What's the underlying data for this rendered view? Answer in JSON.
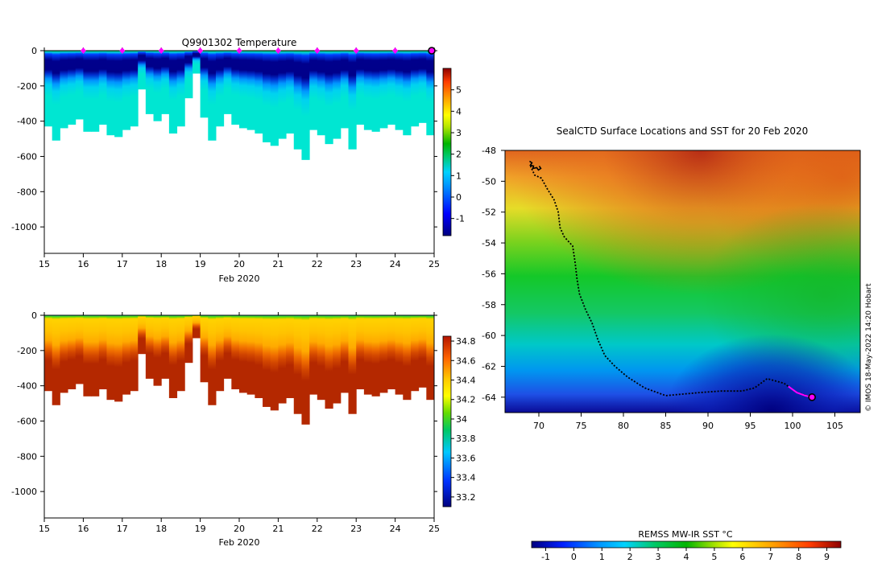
{
  "chart_data": [
    {
      "type": "heatmap",
      "title": "Q9901302  Temperature",
      "variable": "temperature",
      "xlabel": "Feb 2020",
      "x_ticks": [
        "15",
        "16",
        "17",
        "18",
        "19",
        "20",
        "21",
        "22",
        "23",
        "24",
        "25"
      ],
      "xlim": [
        15,
        25
      ],
      "y_ticks": [
        "0",
        "-200",
        "-400",
        "-600",
        "-800",
        "-1000"
      ],
      "ylim": [
        -1150,
        0
      ],
      "colorbar_ticks": [
        "5",
        "4",
        "3",
        "2",
        "1",
        "0",
        "-1"
      ],
      "colorbar_range": [
        -1.8,
        6
      ],
      "surface_markers_day": [
        16,
        17,
        18,
        19,
        20,
        21,
        22,
        23,
        24
      ],
      "end_marker_day": 25,
      "profile_max_depth": [
        [
          15.0,
          430
        ],
        [
          15.2,
          510
        ],
        [
          15.4,
          440
        ],
        [
          15.6,
          420
        ],
        [
          15.8,
          390
        ],
        [
          16.0,
          460
        ],
        [
          16.2,
          460
        ],
        [
          16.4,
          420
        ],
        [
          16.6,
          480
        ],
        [
          16.8,
          490
        ],
        [
          17.0,
          450
        ],
        [
          17.2,
          430
        ],
        [
          17.4,
          220
        ],
        [
          17.6,
          360
        ],
        [
          17.8,
          400
        ],
        [
          18.0,
          360
        ],
        [
          18.2,
          470
        ],
        [
          18.4,
          430
        ],
        [
          18.6,
          270
        ],
        [
          18.8,
          130
        ],
        [
          19.0,
          380
        ],
        [
          19.2,
          510
        ],
        [
          19.4,
          430
        ],
        [
          19.6,
          360
        ],
        [
          19.8,
          420
        ],
        [
          20.0,
          440
        ],
        [
          20.2,
          450
        ],
        [
          20.4,
          470
        ],
        [
          20.6,
          520
        ],
        [
          20.8,
          540
        ],
        [
          21.0,
          500
        ],
        [
          21.2,
          470
        ],
        [
          21.4,
          560
        ],
        [
          21.6,
          620
        ],
        [
          21.8,
          450
        ],
        [
          22.0,
          480
        ],
        [
          22.2,
          530
        ],
        [
          22.4,
          500
        ],
        [
          22.6,
          440
        ],
        [
          22.8,
          560
        ],
        [
          23.0,
          420
        ],
        [
          23.2,
          450
        ],
        [
          23.4,
          460
        ],
        [
          23.6,
          440
        ],
        [
          23.8,
          420
        ],
        [
          24.0,
          450
        ],
        [
          24.2,
          480
        ],
        [
          24.4,
          430
        ],
        [
          24.6,
          410
        ],
        [
          24.8,
          480
        ],
        [
          25.0,
          500
        ]
      ]
    },
    {
      "type": "heatmap",
      "title": "",
      "variable": "salinity",
      "xlabel": "Feb 2020",
      "x_ticks": [
        "15",
        "16",
        "17",
        "18",
        "19",
        "20",
        "21",
        "22",
        "23",
        "24",
        "25"
      ],
      "xlim": [
        15,
        25
      ],
      "y_ticks": [
        "0",
        "-200",
        "-400",
        "-600",
        "-800",
        "-1000"
      ],
      "ylim": [
        -1150,
        0
      ],
      "colorbar_ticks": [
        "34.8",
        "34.6",
        "34.4",
        "34.2",
        "34",
        "33.8",
        "33.6",
        "33.4",
        "33.2"
      ],
      "colorbar_range": [
        33.1,
        34.85
      ],
      "profile_max_depth": [
        [
          15.0,
          430
        ],
        [
          15.2,
          510
        ],
        [
          15.4,
          440
        ],
        [
          15.6,
          420
        ],
        [
          15.8,
          390
        ],
        [
          16.0,
          460
        ],
        [
          16.2,
          460
        ],
        [
          16.4,
          420
        ],
        [
          16.6,
          480
        ],
        [
          16.8,
          490
        ],
        [
          17.0,
          450
        ],
        [
          17.2,
          430
        ],
        [
          17.4,
          220
        ],
        [
          17.6,
          360
        ],
        [
          17.8,
          400
        ],
        [
          18.0,
          360
        ],
        [
          18.2,
          470
        ],
        [
          18.4,
          430
        ],
        [
          18.6,
          270
        ],
        [
          18.8,
          130
        ],
        [
          19.0,
          380
        ],
        [
          19.2,
          510
        ],
        [
          19.4,
          430
        ],
        [
          19.6,
          360
        ],
        [
          19.8,
          420
        ],
        [
          20.0,
          440
        ],
        [
          20.2,
          450
        ],
        [
          20.4,
          470
        ],
        [
          20.6,
          520
        ],
        [
          20.8,
          540
        ],
        [
          21.0,
          500
        ],
        [
          21.2,
          470
        ],
        [
          21.4,
          560
        ],
        [
          21.6,
          620
        ],
        [
          21.8,
          450
        ],
        [
          22.0,
          480
        ],
        [
          22.2,
          530
        ],
        [
          22.4,
          500
        ],
        [
          22.6,
          440
        ],
        [
          22.8,
          560
        ],
        [
          23.0,
          420
        ],
        [
          23.2,
          450
        ],
        [
          23.4,
          460
        ],
        [
          23.6,
          440
        ],
        [
          23.8,
          420
        ],
        [
          24.0,
          450
        ],
        [
          24.2,
          480
        ],
        [
          24.4,
          430
        ],
        [
          24.6,
          410
        ],
        [
          24.8,
          480
        ],
        [
          25.0,
          500
        ]
      ]
    },
    {
      "type": "heatmap",
      "title": "SealCTD Surface Locations and SST for 20 Feb 2020",
      "x_ticks": [
        "70",
        "75",
        "80",
        "85",
        "90",
        "95",
        "100",
        "105"
      ],
      "xlim": [
        66,
        108
      ],
      "y_ticks": [
        "-48",
        "-50",
        "-52",
        "-54",
        "-56",
        "-58",
        "-60",
        "-62",
        "-64"
      ],
      "ylim": [
        -65,
        -48
      ],
      "colorbar_label": "REMSS MW-IR SST °C",
      "colorbar_ticks": [
        "-1",
        "0",
        "1",
        "2",
        "3",
        "4",
        "5",
        "6",
        "7",
        "8",
        "9"
      ],
      "colorbar_range": [
        -1.5,
        9.5
      ],
      "track_lon_lat": [
        [
          69.0,
          -49.0
        ],
        [
          69.5,
          -49.6
        ],
        [
          70.3,
          -49.8
        ],
        [
          71.0,
          -50.5
        ],
        [
          71.8,
          -51.2
        ],
        [
          72.3,
          -52.0
        ],
        [
          72.5,
          -53.0
        ],
        [
          73.0,
          -53.6
        ],
        [
          74.0,
          -54.2
        ],
        [
          74.3,
          -55.3
        ],
        [
          74.5,
          -56.3
        ],
        [
          74.8,
          -57.3
        ],
        [
          75.5,
          -58.3
        ],
        [
          76.3,
          -59.2
        ],
        [
          77.0,
          -60.3
        ],
        [
          77.8,
          -61.3
        ],
        [
          79.0,
          -62.0
        ],
        [
          80.5,
          -62.7
        ],
        [
          82.5,
          -63.4
        ],
        [
          85.0,
          -63.9
        ],
        [
          87.0,
          -63.8
        ],
        [
          89.0,
          -63.7
        ],
        [
          91.5,
          -63.6
        ],
        [
          94.0,
          -63.6
        ],
        [
          95.5,
          -63.4
        ],
        [
          97.0,
          -62.8
        ],
        [
          99.0,
          -63.1
        ],
        [
          100.5,
          -63.7
        ],
        [
          102.3,
          -64.0
        ]
      ],
      "recent_track_lon_lat": [
        [
          99.5,
          -63.3
        ],
        [
          100.5,
          -63.7
        ],
        [
          101.5,
          -63.9
        ],
        [
          102.3,
          -64.0
        ]
      ],
      "current_position": [
        102.3,
        -64.0
      ]
    }
  ],
  "credit": "© IMOS 18-May-2022 14:20 Hobart"
}
